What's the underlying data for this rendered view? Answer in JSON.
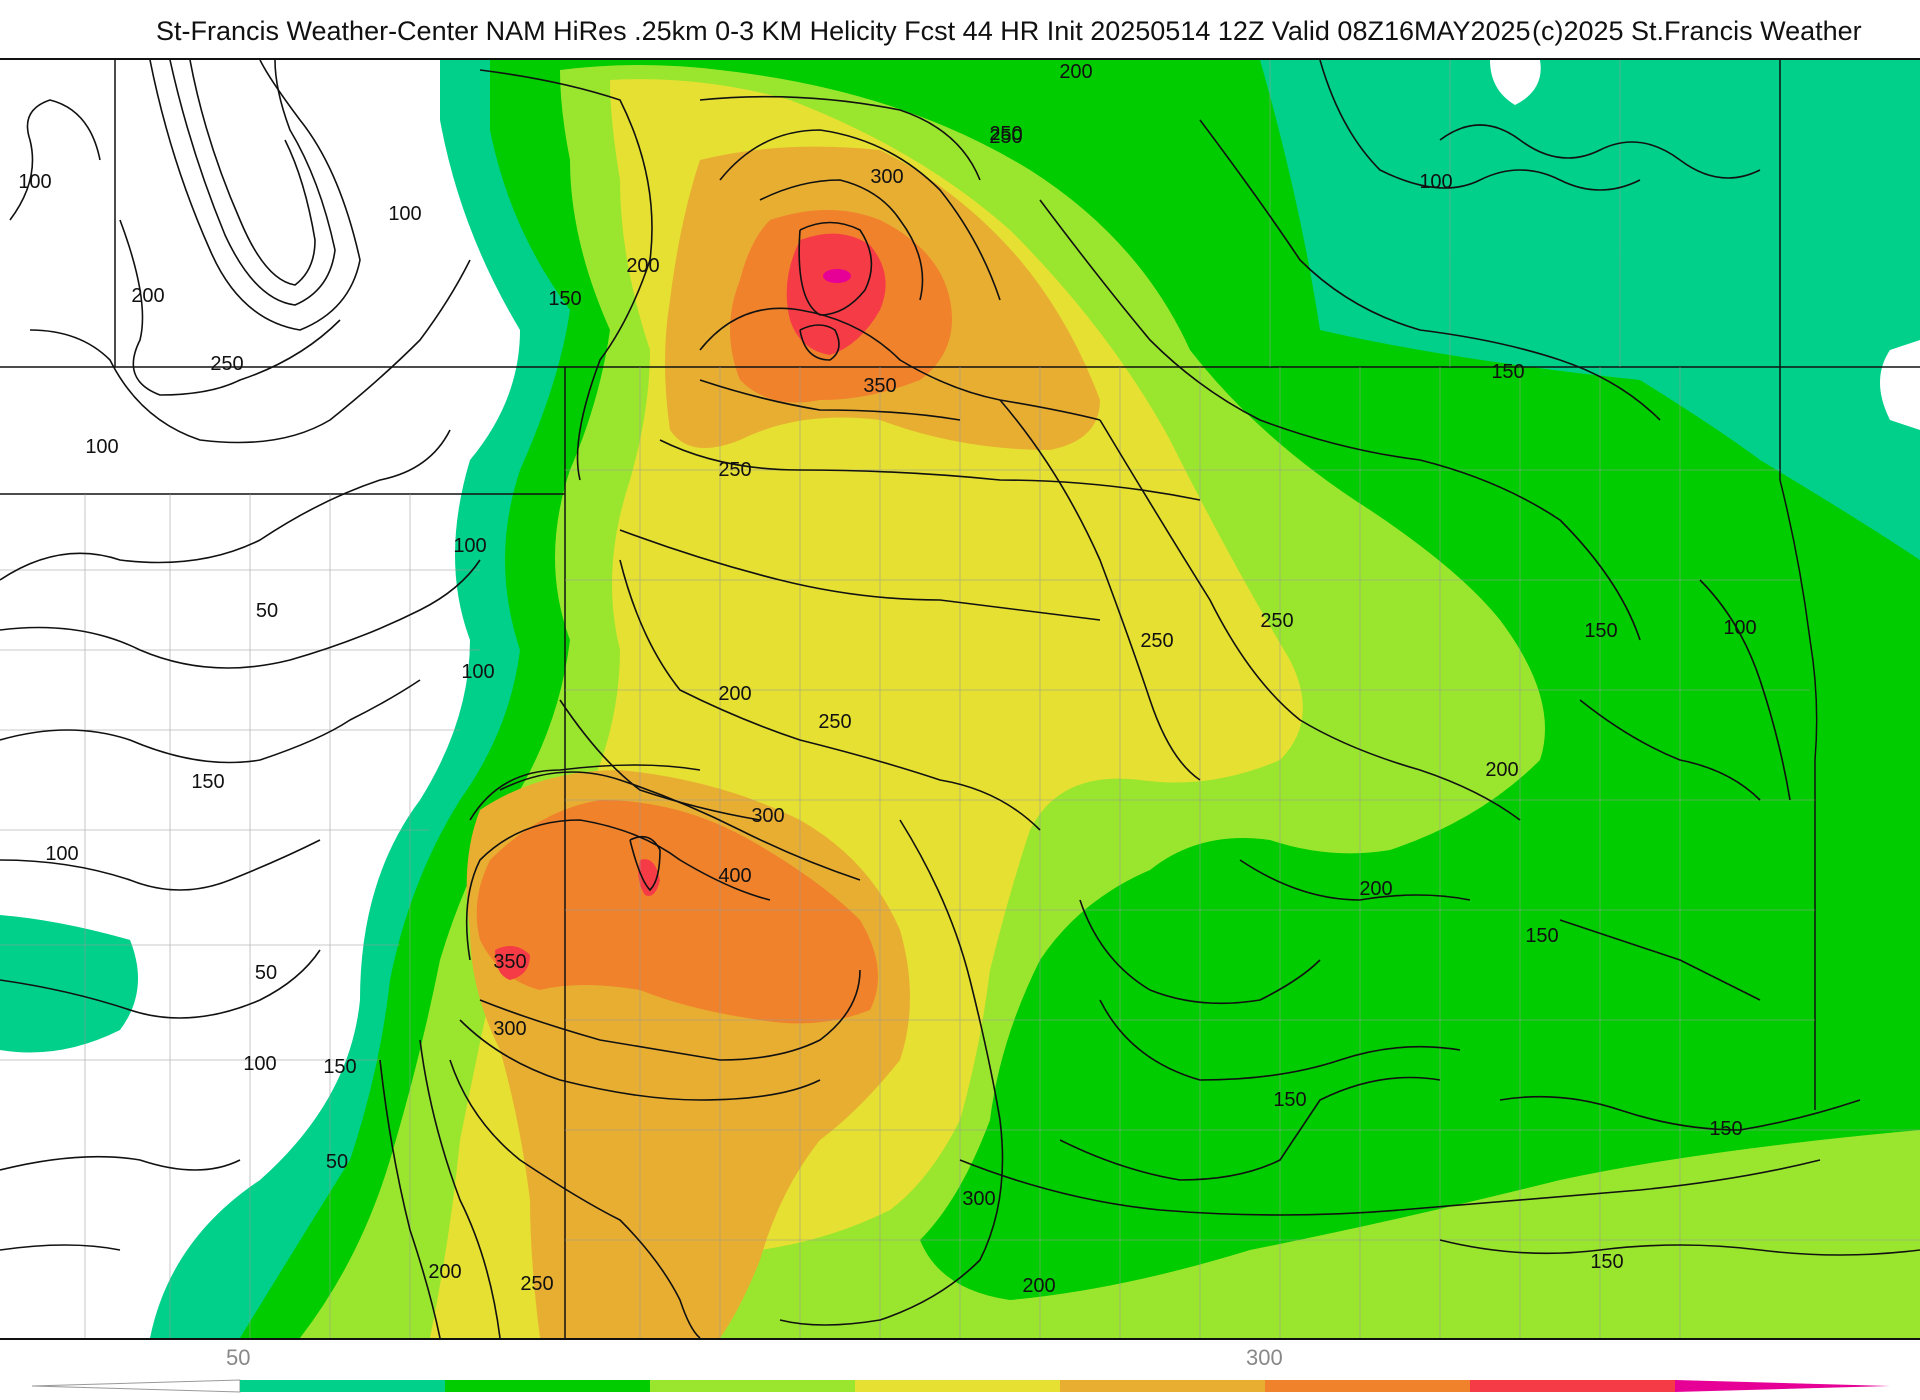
{
  "title": {
    "main": "St-Francis Weather-Center NAM HiRes .25km 0-3 KM Helicity Fcst 44 HR Init 20250514 12Z  Valid 08Z16MAY2025",
    "credit": "(c)2025 St.Francis Weather"
  },
  "colorbar": {
    "tick_labels": [
      {
        "label": "50",
        "value": 50
      },
      {
        "label": "300",
        "value": 300
      }
    ],
    "bins": [
      {
        "from": 50,
        "to": 100,
        "color": "#00d08a"
      },
      {
        "from": 100,
        "to": 150,
        "color": "#00cc00"
      },
      {
        "from": 150,
        "to": 200,
        "color": "#9ae62e"
      },
      {
        "from": 200,
        "to": 250,
        "color": "#e6e032"
      },
      {
        "from": 250,
        "to": 300,
        "color": "#e8ae32"
      },
      {
        "from": 300,
        "to": 350,
        "color": "#f0822c"
      },
      {
        "from": 350,
        "to": 400,
        "color": "#f53c46"
      },
      {
        "from": 400,
        "to": 450,
        "color": "#e60096"
      }
    ]
  },
  "contour_labels": [
    "100",
    "100",
    "200",
    "250",
    "100",
    "100",
    "50",
    "100",
    "150",
    "100",
    "50",
    "100",
    "150",
    "50",
    "200",
    "250",
    "150",
    "200",
    "250",
    "300",
    "350",
    "250",
    "200",
    "250",
    "300",
    "400",
    "350",
    "300",
    "300",
    "250",
    "200",
    "250",
    "250",
    "200",
    "100",
    "150",
    "100",
    "150",
    "200",
    "200",
    "150",
    "150",
    "150",
    "150"
  ]
}
